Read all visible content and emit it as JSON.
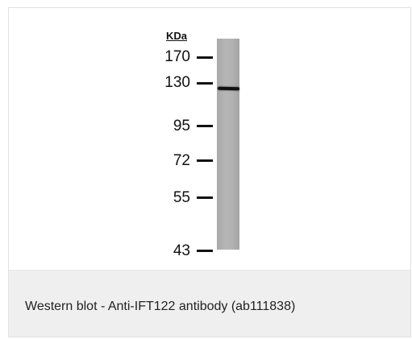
{
  "blot": {
    "unit_label": "KDa",
    "markers": [
      {
        "label": "170"
      },
      {
        "label": "130"
      },
      {
        "label": "95"
      },
      {
        "label": "72"
      },
      {
        "label": "55"
      },
      {
        "label": "43"
      }
    ],
    "band_marker": "130"
  },
  "caption": {
    "text": "Western blot - Anti-IFT122 antibody (ab111838)"
  },
  "colors": {
    "lane": "#b1b1b1",
    "band": "#111111",
    "caption_bg": "#efefef"
  }
}
